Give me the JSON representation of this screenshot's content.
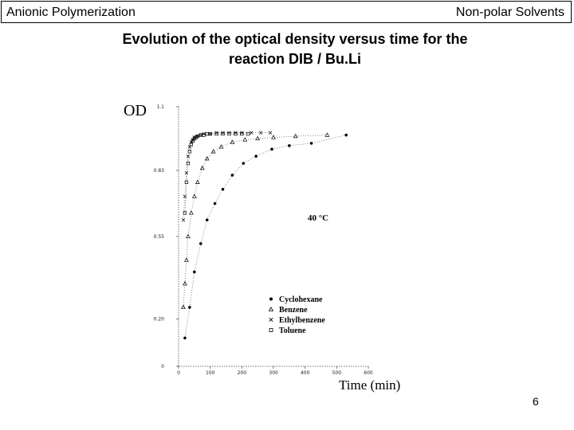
{
  "header": {
    "left": "Anionic Polymerization",
    "right": "Non-polar Solvents"
  },
  "title_line1": "Evolution of the optical density versus time for the",
  "title_line2": "reaction DIB / Bu.Li",
  "page_number": "6",
  "chart_data": {
    "type": "scatter",
    "title": "",
    "ylabel": "OD",
    "xlabel": "Time (min)",
    "xlim": [
      0,
      600
    ],
    "ylim": [
      0,
      1.1
    ],
    "x_ticks": [
      "0",
      "100",
      "200",
      "300",
      "400",
      "500",
      "600"
    ],
    "y_ticks": [
      "0",
      "0.20",
      "0.55",
      "0.83",
      "1.1"
    ],
    "annotation": "40 °C",
    "legend_position": "bottom-right",
    "series": [
      {
        "name": "Cyclohexane",
        "marker": "filled-circle",
        "x": [
          20,
          35,
          50,
          70,
          90,
          115,
          140,
          170,
          205,
          245,
          295,
          350,
          420,
          530
        ],
        "y": [
          0.12,
          0.25,
          0.4,
          0.52,
          0.62,
          0.69,
          0.75,
          0.81,
          0.86,
          0.89,
          0.92,
          0.935,
          0.945,
          0.98
        ]
      },
      {
        "name": "Benzene",
        "marker": "open-triangle",
        "x": [
          15,
          20,
          25,
          30,
          40,
          50,
          60,
          75,
          90,
          110,
          135,
          170,
          210,
          250,
          300,
          370,
          470
        ],
        "y": [
          0.25,
          0.35,
          0.45,
          0.55,
          0.65,
          0.72,
          0.78,
          0.84,
          0.88,
          0.91,
          0.93,
          0.95,
          0.96,
          0.965,
          0.97,
          0.975,
          0.98
        ]
      },
      {
        "name": "Ethylbenzene",
        "marker": "x",
        "x": [
          15,
          20,
          25,
          30,
          35,
          40,
          45,
          50,
          60,
          70,
          80,
          100,
          120,
          140,
          160,
          180,
          200,
          230,
          260,
          290
        ],
        "y": [
          0.62,
          0.72,
          0.82,
          0.89,
          0.93,
          0.95,
          0.96,
          0.97,
          0.975,
          0.98,
          0.985,
          0.985,
          0.99,
          0.99,
          0.99,
          0.99,
          0.99,
          0.99,
          0.99,
          0.99
        ]
      },
      {
        "name": "Toluene",
        "marker": "open-square",
        "x": [
          20,
          25,
          30,
          35,
          40,
          45,
          50,
          55,
          60,
          70,
          80,
          90,
          100,
          120,
          140,
          160,
          180,
          200,
          220
        ],
        "y": [
          0.65,
          0.78,
          0.86,
          0.91,
          0.94,
          0.955,
          0.965,
          0.97,
          0.975,
          0.98,
          0.98,
          0.985,
          0.985,
          0.985,
          0.985,
          0.985,
          0.985,
          0.985,
          0.985
        ]
      }
    ]
  }
}
